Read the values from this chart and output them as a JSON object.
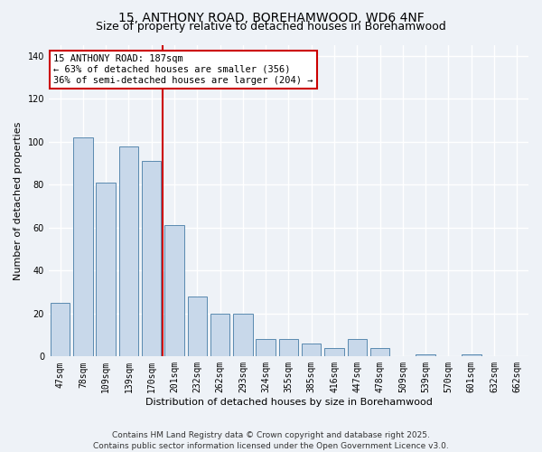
{
  "title1": "15, ANTHONY ROAD, BOREHAMWOOD, WD6 4NF",
  "title2": "Size of property relative to detached houses in Borehamwood",
  "xlabel": "Distribution of detached houses by size in Borehamwood",
  "ylabel": "Number of detached properties",
  "categories": [
    "47sqm",
    "78sqm",
    "109sqm",
    "139sqm",
    "170sqm",
    "201sqm",
    "232sqm",
    "262sqm",
    "293sqm",
    "324sqm",
    "355sqm",
    "385sqm",
    "416sqm",
    "447sqm",
    "478sqm",
    "509sqm",
    "539sqm",
    "570sqm",
    "601sqm",
    "632sqm",
    "662sqm"
  ],
  "values": [
    25,
    102,
    81,
    98,
    91,
    61,
    28,
    20,
    20,
    8,
    8,
    6,
    4,
    8,
    4,
    0,
    1,
    0,
    1,
    0,
    0
  ],
  "bar_color": "#c8d8ea",
  "bar_edge_color": "#5a8ab0",
  "vline_x": 4.5,
  "vline_color": "#cc0000",
  "annotation_text": "15 ANTHONY ROAD: 187sqm\n← 63% of detached houses are smaller (356)\n36% of semi-detached houses are larger (204) →",
  "annotation_box_color": "#ffffff",
  "annotation_box_edge": "#cc0000",
  "ylim": [
    0,
    145
  ],
  "yticks": [
    0,
    20,
    40,
    60,
    80,
    100,
    120,
    140
  ],
  "background_color": "#eef2f7",
  "grid_color": "#ffffff",
  "footer": "Contains HM Land Registry data © Crown copyright and database right 2025.\nContains public sector information licensed under the Open Government Licence v3.0.",
  "title1_fontsize": 10,
  "title2_fontsize": 9,
  "xlabel_fontsize": 8,
  "ylabel_fontsize": 8,
  "tick_fontsize": 7,
  "annotation_fontsize": 7.5,
  "footer_fontsize": 6.5
}
